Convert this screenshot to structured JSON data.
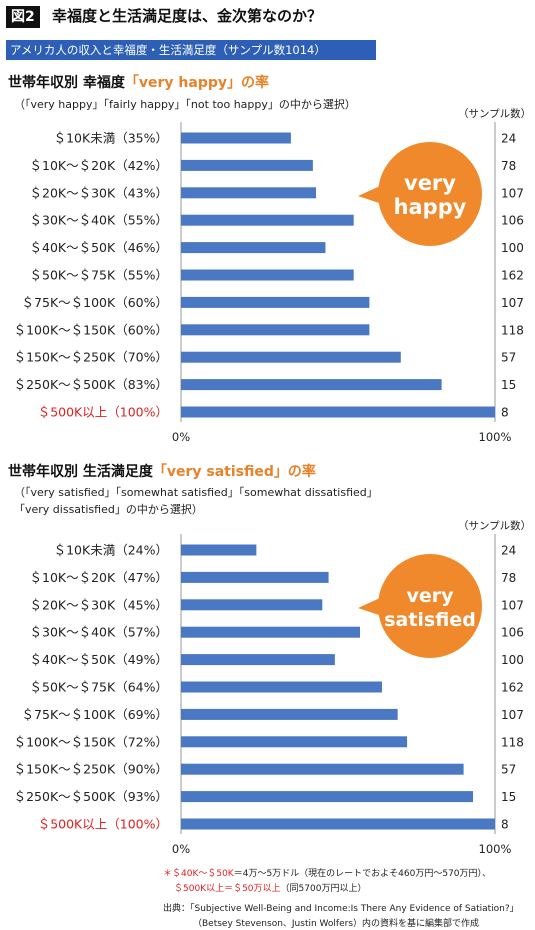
{
  "header": {
    "badge": "図2",
    "title": "幸福度と生活満足度は、金次第なのか？",
    "banner": "アメリカ人の収入と幸福度・生活満足度（サンプル数1014）"
  },
  "sections": [
    {
      "title_prefix": "世帯年収別 幸福度",
      "title_highlight": "「very happy」の率",
      "note_lines": [
        "（「very happy」「fairly happy」「not too happy」の中から選択）"
      ],
      "count_header": "（サンプル数）",
      "callout_lines": [
        "very",
        "happy"
      ]
    },
    {
      "title_prefix": "世帯年収別 生活満足度",
      "title_highlight": "「very satisfied」の率",
      "note_lines": [
        "（「very satisfied」「somewhat satisfied」「somewhat dissatisfied」",
        "「very dissatisfied」の中から選択）"
      ],
      "count_header": "（サンプル数）",
      "callout_lines": [
        "very",
        "satisfied"
      ]
    }
  ],
  "colors": {
    "bar": "#4a78c2",
    "highlight_text": "#e02020",
    "callout": "#f0892c",
    "banner": "#2d5fb7"
  },
  "chart_data": [
    {
      "type": "bar",
      "orientation": "horizontal",
      "categories": [
        "＄10K未満（35%）",
        "＄10K〜＄20K（42%）",
        "＄20K〜＄30K（43%）",
        "＄30K〜＄40K（55%）",
        "＄40K〜＄50K（46%）",
        "＄50K〜＄75K（55%）",
        "＄75K〜＄100K（60%）",
        "＄100K〜＄150K（60%）",
        "＄150K〜＄250K（70%）",
        "＄250K〜＄500K（83%）",
        "＄500K以上（100%）"
      ],
      "values": [
        35,
        42,
        43,
        55,
        46,
        55,
        60,
        60,
        70,
        83,
        100
      ],
      "sample_sizes": [
        "24",
        "78",
        "107",
        "106",
        "100",
        "162",
        "107",
        "118",
        "57",
        "15",
        "8"
      ],
      "highlight_index": 10,
      "xlim": [
        0,
        100
      ],
      "x_tick_labels": [
        "0%",
        "100%"
      ]
    },
    {
      "type": "bar",
      "orientation": "horizontal",
      "categories": [
        "＄10K未満（24%）",
        "＄10K〜＄20K（47%）",
        "＄20K〜＄30K（45%）",
        "＄30K〜＄40K（57%）",
        "＄40K〜＄50K（49%）",
        "＄50K〜＄75K（64%）",
        "＄75K〜＄100K（69%）",
        "＄100K〜＄150K（72%）",
        "＄150K〜＄250K（90%）",
        "＄250K〜＄500K（93%）",
        "＄500K以上（100%）"
      ],
      "values": [
        24,
        47,
        45,
        57,
        49,
        64,
        69,
        72,
        90,
        93,
        100
      ],
      "sample_sizes": [
        "24",
        "78",
        "107",
        "106",
        "100",
        "162",
        "107",
        "118",
        "57",
        "15",
        "8"
      ],
      "highlight_index": 10,
      "xlim": [
        0,
        100
      ],
      "x_tick_labels": [
        "0%",
        "100%"
      ]
    }
  ],
  "footer": {
    "note_red_1": "＊＄40K〜＄50K",
    "note_text_1": "＝4万〜5万ドル（現在のレートでおよそ460万円〜570万円）、",
    "note_red_2": "＄500K以上＝＄50万以上",
    "note_text_2": "（同5700万円以上）",
    "source_1": "出典：「Subjective Well-Being and Income:Is There Any Evidence of Satiation?」",
    "source_2": "（Betsey Stevenson、Justin Wolfers）内の資料を基に編集部で作成"
  }
}
